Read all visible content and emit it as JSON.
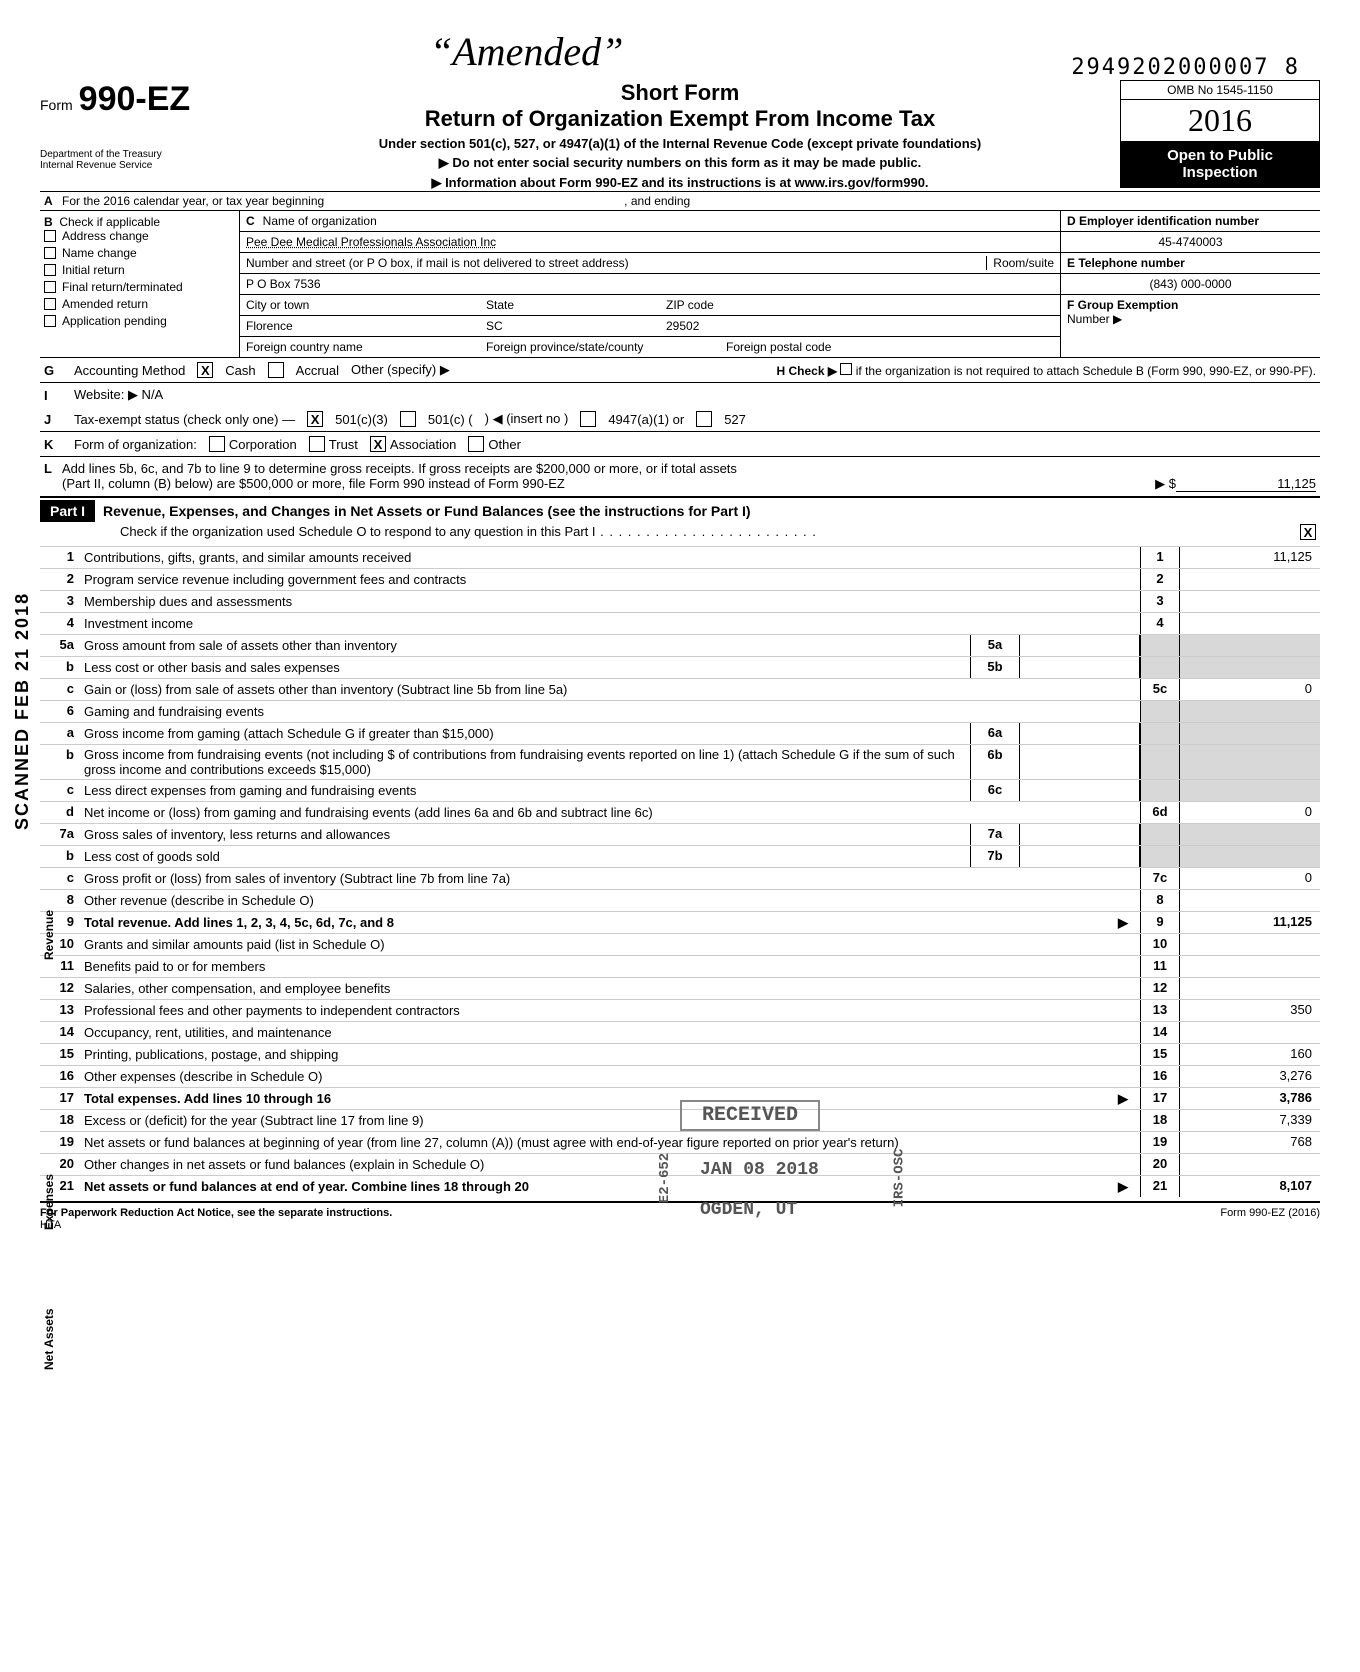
{
  "top": {
    "handwritten": "“Amended”",
    "stamp_number": "2949202000007 8",
    "omb": "OMB No  1545-1150",
    "year": "2016",
    "open1": "Open to Public",
    "open2": "Inspection",
    "form_word": "Form",
    "form_num": "990-EZ",
    "title_main": "Short Form",
    "title_sub": "Return of Organization Exempt From Income Tax",
    "under": "Under section 501(c), 527, or 4947(a)(1) of the Internal Revenue Code (except private foundations)",
    "donot": "Do not enter social security numbers on this form as it may be made public.",
    "info": "Information about Form 990-EZ and its instructions is at www.irs.gov/form990.",
    "dept1": "Department of the Treasury",
    "dept2": "Internal Revenue Service"
  },
  "rowA": {
    "lbl": "A",
    "text": "For the 2016 calendar year, or tax year beginning",
    "mid": ", and ending"
  },
  "colB": {
    "lbl": "B",
    "hdr": "Check if applicable",
    "items": [
      "Address change",
      "Name change",
      "Initial return",
      "Final return/terminated",
      "Amended return",
      "Application pending"
    ]
  },
  "colC": {
    "lbl": "C",
    "name_lbl": "Name of organization",
    "name": "Pee Dee Medical Professionals Association Inc",
    "addr_lbl": "Number and street (or P O  box, if mail is not delivered to street address)",
    "addr": "P O  Box 7536",
    "room_lbl": "Room/suite",
    "city_lbl": "City or town",
    "city": "Florence",
    "state_lbl": "State",
    "state": "SC",
    "zip_lbl": "ZIP code",
    "zip": "29502",
    "foreign1": "Foreign country name",
    "foreign2": "Foreign province/state/county",
    "foreign3": "Foreign postal code"
  },
  "colD": {
    "d_lbl": "D  Employer identification number",
    "d_val": "45-4740003",
    "e_lbl": "E  Telephone number",
    "e_val": "(843) 000-0000",
    "f_lbl": "F  Group Exemption",
    "f_lbl2": "Number ▶"
  },
  "rowG": {
    "lbl": "G",
    "text": "Accounting Method",
    "cash": "Cash",
    "accrual": "Accrual",
    "other": "Other (specify) ▶",
    "h": "H  Check ▶",
    "h2": "if the organization is not required to attach Schedule B (Form 990, 990-EZ, or 990-PF)."
  },
  "rowI": {
    "lbl": "I",
    "text": "Website: ▶ N/A"
  },
  "rowJ": {
    "lbl": "J",
    "text": "Tax-exempt status (check only one) —",
    "a": "501(c)(3)",
    "b": "501(c) (",
    "c": ") ◀ (insert no )",
    "d": "4947(a)(1) or",
    "e": "527"
  },
  "rowK": {
    "lbl": "K",
    "text": "Form of organization:",
    "opts": [
      "Corporation",
      "Trust",
      "Association",
      "Other"
    ]
  },
  "rowL": {
    "lbl": "L",
    "text1": "Add lines 5b, 6c, and 7b to line 9 to determine gross receipts. If gross receipts are $200,000 or more, or if total assets",
    "text2": "(Part II, column (B) below) are $500,000 or more, file Form 990 instead of Form 990-EZ",
    "arrow": "▶ $",
    "val": "11,125"
  },
  "part1": {
    "tag": "Part I",
    "title": "Revenue, Expenses, and Changes in Net Assets or Fund Balances (see the instructions for Part I)",
    "sub": "Check if the organization used Schedule O to respond to any question in this Part I",
    "x": "X"
  },
  "lines": [
    {
      "n": "1",
      "d": "Contributions, gifts, grants, and similar amounts received",
      "rn": "1",
      "rv": "11,125"
    },
    {
      "n": "2",
      "d": "Program service revenue including government fees and contracts",
      "rn": "2",
      "rv": ""
    },
    {
      "n": "3",
      "d": "Membership dues and assessments",
      "rn": "3",
      "rv": ""
    },
    {
      "n": "4",
      "d": "Investment income",
      "rn": "4",
      "rv": ""
    },
    {
      "n": "5a",
      "d": "Gross amount from sale of assets other than inventory",
      "mb": "5a",
      "mv": "",
      "rn": "",
      "rv": "",
      "shade": true
    },
    {
      "n": "b",
      "d": "Less  cost or other basis and sales expenses",
      "mb": "5b",
      "mv": "",
      "rn": "",
      "rv": "",
      "shade": true
    },
    {
      "n": "c",
      "d": "Gain or (loss) from sale of assets other than inventory (Subtract line 5b from line 5a)",
      "rn": "5c",
      "rv": "0"
    },
    {
      "n": "6",
      "d": "Gaming and fundraising events",
      "rn": "",
      "rv": "",
      "shade": true
    },
    {
      "n": "a",
      "d": "Gross income from gaming (attach Schedule G if greater than $15,000)",
      "mb": "6a",
      "mv": "",
      "rn": "",
      "rv": "",
      "shade": true
    },
    {
      "n": "b",
      "d": "Gross income from fundraising events (not including        $                 of contributions from fundraising events reported on line 1) (attach Schedule G if the sum of such gross income and contributions exceeds $15,000)",
      "mb": "6b",
      "mv": "",
      "rn": "",
      "rv": "",
      "shade": true
    },
    {
      "n": "c",
      "d": "Less  direct expenses from gaming and fundraising events",
      "mb": "6c",
      "mv": "",
      "rn": "",
      "rv": "",
      "shade": true
    },
    {
      "n": "d",
      "d": "Net income or (loss) from gaming and fundraising events (add lines 6a and 6b and subtract line 6c)",
      "rn": "6d",
      "rv": "0"
    },
    {
      "n": "7a",
      "d": "Gross sales of inventory, less returns and allowances",
      "mb": "7a",
      "mv": "",
      "rn": "",
      "rv": "",
      "shade": true
    },
    {
      "n": "b",
      "d": "Less  cost of goods sold",
      "mb": "7b",
      "mv": "",
      "rn": "",
      "rv": "",
      "shade": true
    },
    {
      "n": "c",
      "d": "Gross profit or (loss) from sales of inventory (Subtract line 7b from line 7a)",
      "rn": "7c",
      "rv": "0"
    },
    {
      "n": "8",
      "d": "Other revenue (describe in Schedule O)",
      "rn": "8",
      "rv": ""
    },
    {
      "n": "9",
      "d": "Total revenue. Add lines 1, 2, 3, 4, 5c, 6d, 7c, and 8",
      "rn": "9",
      "rv": "11,125",
      "total": true,
      "arrow": "▶"
    },
    {
      "n": "10",
      "d": "Grants and similar amounts paid (list in Schedule O)",
      "rn": "10",
      "rv": ""
    },
    {
      "n": "11",
      "d": "Benefits paid to or for members",
      "rn": "11",
      "rv": ""
    },
    {
      "n": "12",
      "d": "Salaries, other compensation, and employee benefits",
      "rn": "12",
      "rv": ""
    },
    {
      "n": "13",
      "d": "Professional fees and other payments to independent contractors",
      "rn": "13",
      "rv": "350"
    },
    {
      "n": "14",
      "d": "Occupancy, rent, utilities, and maintenance",
      "rn": "14",
      "rv": ""
    },
    {
      "n": "15",
      "d": "Printing, publications, postage, and shipping",
      "rn": "15",
      "rv": "160"
    },
    {
      "n": "16",
      "d": "Other expenses (describe in Schedule O)",
      "rn": "16",
      "rv": "3,276"
    },
    {
      "n": "17",
      "d": "Total expenses. Add lines 10 through 16",
      "rn": "17",
      "rv": "3,786",
      "total": true,
      "arrow": "▶"
    },
    {
      "n": "18",
      "d": "Excess or (deficit) for the year (Subtract line 17 from line 9)",
      "rn": "18",
      "rv": "7,339"
    },
    {
      "n": "19",
      "d": "Net assets or fund balances at beginning of year (from line 27, column (A)) (must agree with end-of-year figure reported on prior year's return)",
      "rn": "19",
      "rv": "768"
    },
    {
      "n": "20",
      "d": "Other changes in net assets or fund balances (explain in Schedule O)",
      "rn": "20",
      "rv": ""
    },
    {
      "n": "21",
      "d": "Net assets or fund balances at end of year. Combine lines 18 through 20",
      "rn": "21",
      "rv": "8,107",
      "total": true,
      "arrow": "▶"
    }
  ],
  "sidebar": "SCANNED FEB 21 2018",
  "side_labels": {
    "rev": "Revenue",
    "exp": "Expenses",
    "na": "Net Assets"
  },
  "stamps": {
    "received": "RECEIVED",
    "date": "JAN 08 2018",
    "place": "OGDEN, UT",
    "code1": "E2-652",
    "code2": "IRS-OSC"
  },
  "footer": {
    "left": "For Paperwork Reduction Act Notice, see the separate instructions.",
    "hta": "HTA",
    "right": "Form 990-EZ (2016)"
  }
}
